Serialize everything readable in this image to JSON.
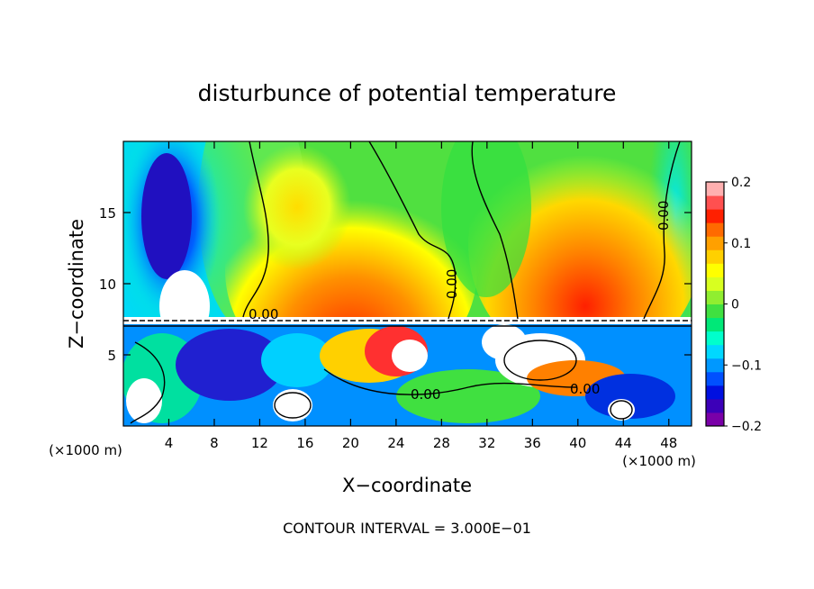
{
  "chart_data": {
    "type": "heatmap",
    "title": "disturbunce of potential temperature",
    "xlabel": "X−coordinate",
    "ylabel": "Z−coordinate",
    "x_unit_left": "(×1000 m)",
    "x_unit_right": "(×1000 m)",
    "xlim": [
      0,
      50
    ],
    "ylim": [
      0,
      20
    ],
    "xticks": [
      4,
      8,
      12,
      16,
      20,
      24,
      28,
      32,
      36,
      40,
      44,
      48
    ],
    "yticks": [
      5,
      10,
      15
    ],
    "colorbar": {
      "range": [
        -0.2,
        0.2
      ],
      "tick_labels": [
        "0.2",
        "0.1",
        "0",
        "−0.1",
        "−0.2"
      ],
      "tick_values": [
        0.2,
        0.1,
        0,
        -0.1,
        -0.2
      ],
      "colors": [
        "#7a00a8",
        "#3c00b8",
        "#0010e0",
        "#0050ff",
        "#0098ff",
        "#00d8ff",
        "#00ffcc",
        "#00e878",
        "#40e040",
        "#90ee30",
        "#d8ff20",
        "#ffff00",
        "#ffd000",
        "#ffa000",
        "#ff6a00",
        "#ff2000",
        "#ff5050",
        "#ffb0b0"
      ]
    },
    "contour_labels": [
      "0.00",
      "0.00",
      "0.00",
      "0.00",
      "0.00"
    ],
    "footer": "CONTOUR INTERVAL = 3.000E−01"
  }
}
